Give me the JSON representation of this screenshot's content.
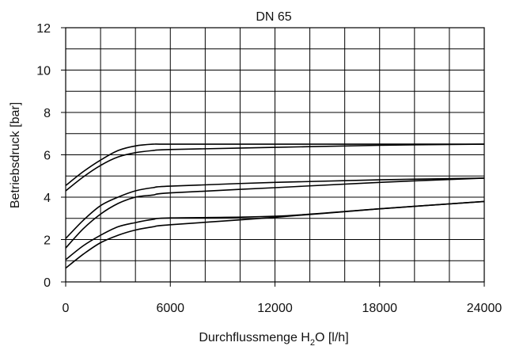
{
  "chart_data": {
    "type": "line",
    "title": "DN 65",
    "xlabel": "Durchflussmenge H₂O [l/h]",
    "ylabel": "Betriebsdruck [bar]",
    "xlim": [
      0,
      24000
    ],
    "ylim": [
      0,
      12
    ],
    "x_ticks": [
      0,
      6000,
      12000,
      18000,
      24000
    ],
    "x_tick_labels": [
      "0",
      "6000",
      "12000",
      "18000",
      "24000"
    ],
    "y_ticks": [
      0,
      2,
      4,
      6,
      8,
      10,
      12
    ],
    "y_tick_labels": [
      "0",
      "2",
      "4",
      "6",
      "8",
      "10",
      "12"
    ],
    "x_grid_step": 2000,
    "y_grid_step": 1,
    "grid": true,
    "series": [
      {
        "values": [
          [
            0,
            4.55
          ],
          [
            1000,
            5.2
          ],
          [
            2000,
            5.75
          ],
          [
            3000,
            6.2
          ],
          [
            4000,
            6.42
          ],
          [
            5000,
            6.5
          ],
          [
            6000,
            6.5
          ],
          [
            12000,
            6.5
          ],
          [
            18000,
            6.5
          ],
          [
            24000,
            6.5
          ]
        ]
      },
      {
        "values": [
          [
            0,
            4.3
          ],
          [
            1000,
            4.95
          ],
          [
            2000,
            5.5
          ],
          [
            3000,
            5.9
          ],
          [
            4000,
            6.1
          ],
          [
            5000,
            6.2
          ],
          [
            6000,
            6.25
          ],
          [
            12000,
            6.35
          ],
          [
            18000,
            6.45
          ],
          [
            24000,
            6.5
          ]
        ]
      },
      {
        "values": [
          [
            0,
            2.05
          ],
          [
            1000,
            2.9
          ],
          [
            2000,
            3.6
          ],
          [
            3000,
            4.0
          ],
          [
            4000,
            4.3
          ],
          [
            5000,
            4.45
          ],
          [
            6000,
            4.52
          ],
          [
            12000,
            4.7
          ],
          [
            18000,
            4.82
          ],
          [
            24000,
            4.9
          ]
        ]
      },
      {
        "values": [
          [
            0,
            1.6
          ],
          [
            1000,
            2.5
          ],
          [
            2000,
            3.2
          ],
          [
            3000,
            3.7
          ],
          [
            4000,
            4.0
          ],
          [
            5000,
            4.1
          ],
          [
            6000,
            4.2
          ],
          [
            12000,
            4.45
          ],
          [
            18000,
            4.7
          ],
          [
            24000,
            4.9
          ]
        ]
      },
      {
        "values": [
          [
            0,
            1.05
          ],
          [
            1000,
            1.7
          ],
          [
            2000,
            2.2
          ],
          [
            3000,
            2.6
          ],
          [
            4000,
            2.8
          ],
          [
            5000,
            2.95
          ],
          [
            6000,
            3.02
          ],
          [
            12000,
            3.1
          ],
          [
            18000,
            3.45
          ],
          [
            24000,
            3.8
          ]
        ]
      },
      {
        "values": [
          [
            0,
            0.65
          ],
          [
            1000,
            1.3
          ],
          [
            2000,
            1.85
          ],
          [
            3000,
            2.2
          ],
          [
            4000,
            2.45
          ],
          [
            5000,
            2.6
          ],
          [
            6000,
            2.7
          ],
          [
            12000,
            3.05
          ],
          [
            18000,
            3.45
          ],
          [
            24000,
            3.8
          ]
        ]
      }
    ]
  }
}
